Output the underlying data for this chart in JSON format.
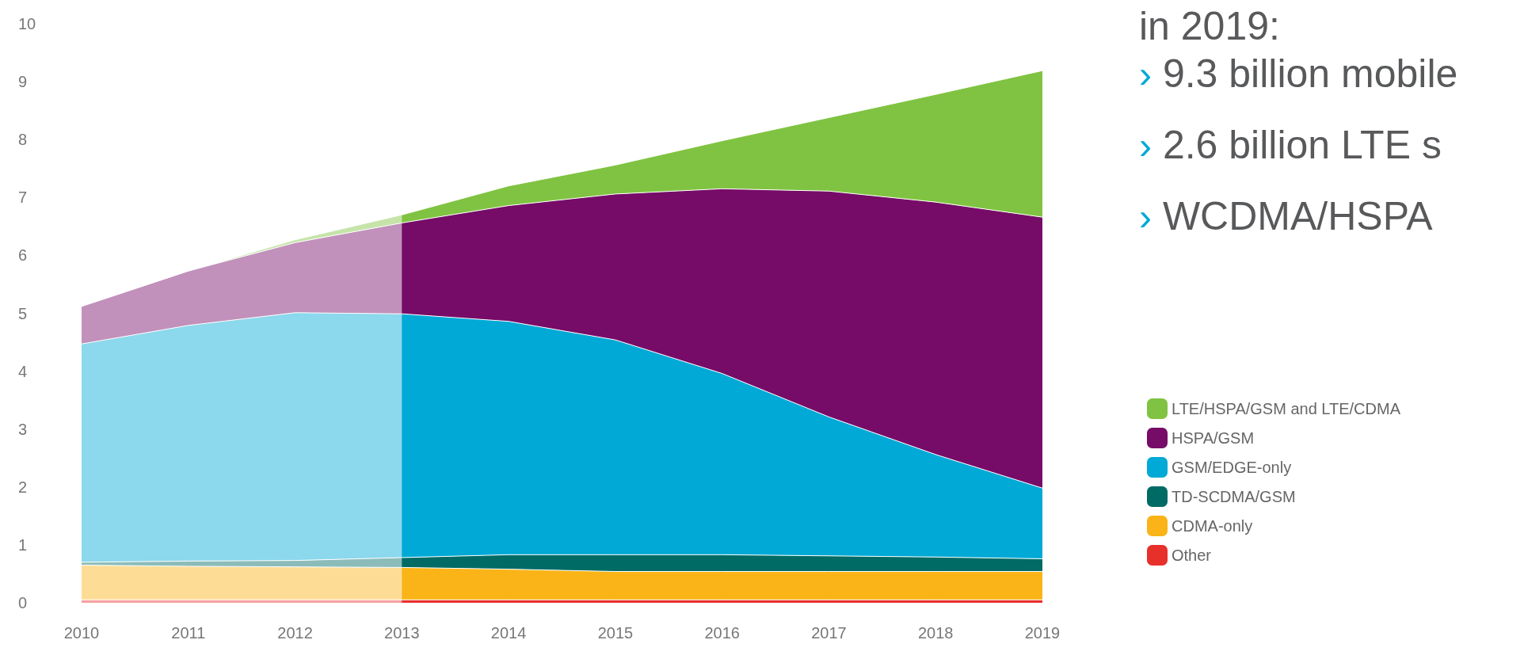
{
  "chart_data": {
    "type": "area",
    "stacked": true,
    "categories": [
      "2010",
      "2011",
      "2012",
      "2013",
      "2014",
      "2015",
      "2016",
      "2017",
      "2018",
      "2019"
    ],
    "series": [
      {
        "name": "Other",
        "color": "#e8302a",
        "values": [
          0.05,
          0.05,
          0.05,
          0.05,
          0.05,
          0.05,
          0.05,
          0.05,
          0.05,
          0.05
        ]
      },
      {
        "name": "CDMA-only",
        "color": "#fab418",
        "values": [
          0.6,
          0.58,
          0.57,
          0.56,
          0.53,
          0.49,
          0.49,
          0.49,
          0.49,
          0.49
        ]
      },
      {
        "name": "TD-SCDMA/GSM",
        "color": "#006b65",
        "values": [
          0.05,
          0.09,
          0.11,
          0.17,
          0.25,
          0.29,
          0.29,
          0.27,
          0.25,
          0.22
        ]
      },
      {
        "name": "GSM/EDGE-only",
        "color": "#00a9d6",
        "values": [
          3.77,
          4.07,
          4.28,
          4.21,
          4.03,
          3.71,
          3.13,
          2.4,
          1.77,
          1.22
        ]
      },
      {
        "name": "HSPA/GSM",
        "color": "#760c68",
        "values": [
          0.65,
          0.94,
          1.21,
          1.57,
          2.0,
          2.52,
          3.19,
          3.9,
          4.36,
          4.68
        ]
      },
      {
        "name": "LTE/HSPA/GSM and LTE/CDMA",
        "color": "#80c342",
        "values": [
          0,
          0,
          0.05,
          0.14,
          0.34,
          0.5,
          0.83,
          1.27,
          1.86,
          2.53
        ]
      }
    ],
    "ylim": [
      0,
      10
    ],
    "yticks": [
      0,
      1,
      2,
      3,
      4,
      5,
      6,
      7,
      8,
      9,
      10
    ],
    "bands": [
      {
        "axis": "x",
        "from": "2010",
        "to": "2013",
        "color": "#ffffff"
      }
    ],
    "annotations": [
      "in 2019:",
      "› 9.3 billion mobile",
      "› 2.6 billion LTE s",
      "› WCDMA/HSPA"
    ],
    "legend": "right",
    "grid": false
  }
}
